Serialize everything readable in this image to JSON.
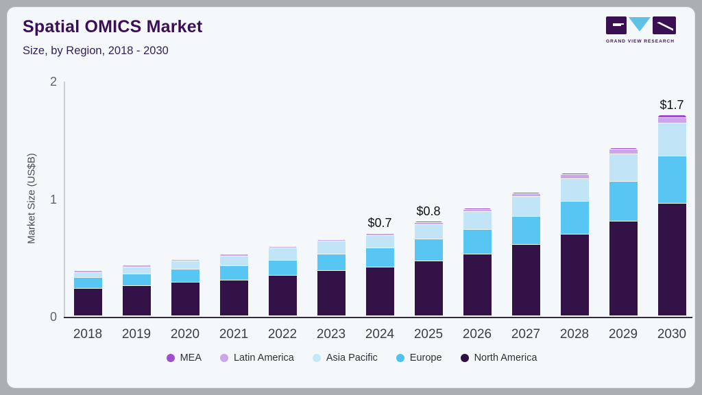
{
  "header": {
    "title": "Spatial OMICS Market",
    "subtitle": "Size, by Region, 2018 - 2030",
    "logo_text": "GRAND VIEW RESEARCH"
  },
  "colors": {
    "page_background": "#abafb4",
    "card_background": "#f5f8fa",
    "title_text": "#3a0f55",
    "axis_line_dark": "#332d3b",
    "axis_line_light": "#c7ced5",
    "logo_purple": "#3a1053",
    "logo_blue": "#5ec1e6"
  },
  "chart_data": {
    "type": "bar",
    "stacked": true,
    "title": "Spatial OMICS Market",
    "subtitle": "Size, by Region, 2018 - 2030",
    "xlabel": "",
    "ylabel": "Market Size (US$B)",
    "ylim": [
      0,
      2
    ],
    "yticks": [
      0,
      1,
      2
    ],
    "grid": false,
    "legend_position": "bottom",
    "categories": [
      "2018",
      "2019",
      "2020",
      "2021",
      "2022",
      "2023",
      "2024",
      "2025",
      "2026",
      "2027",
      "2028",
      "2029",
      "2030"
    ],
    "series": [
      {
        "name": "North America",
        "color": "#331347",
        "values": [
          0.23,
          0.25,
          0.28,
          0.3,
          0.34,
          0.38,
          0.41,
          0.46,
          0.52,
          0.6,
          0.69,
          0.8,
          0.95
        ]
      },
      {
        "name": "Europe",
        "color": "#58c6f2",
        "values": [
          0.09,
          0.1,
          0.11,
          0.12,
          0.13,
          0.14,
          0.16,
          0.19,
          0.21,
          0.24,
          0.28,
          0.34,
          0.4
        ]
      },
      {
        "name": "Asia Pacific",
        "color": "#c1e5f7",
        "values": [
          0.045,
          0.06,
          0.07,
          0.08,
          0.1,
          0.11,
          0.105,
          0.12,
          0.15,
          0.17,
          0.19,
          0.23,
          0.28
        ]
      },
      {
        "name": "Latin America",
        "color": "#cda6e9",
        "values": [
          0.015,
          0.015,
          0.015,
          0.02,
          0.015,
          0.015,
          0.02,
          0.02,
          0.02,
          0.025,
          0.035,
          0.04,
          0.05
        ]
      },
      {
        "name": "MEA",
        "color": "#9d4ccb",
        "values": [
          0.005,
          0.005,
          0.005,
          0.005,
          0.005,
          0.005,
          0.005,
          0.01,
          0.01,
          0.01,
          0.01,
          0.015,
          0.02
        ]
      }
    ],
    "annotations": [
      {
        "category": "2024",
        "label": "$0.7"
      },
      {
        "category": "2025",
        "label": "$0.8"
      },
      {
        "category": "2030",
        "label": "$1.7"
      }
    ]
  },
  "legend": {
    "items": [
      {
        "label": "MEA",
        "color": "#a14fd0"
      },
      {
        "label": "Latin America",
        "color": "#cda6e9"
      },
      {
        "label": "Asia Pacific",
        "color": "#c5e8f9"
      },
      {
        "label": "Europe",
        "color": "#4ec3ef"
      },
      {
        "label": "North America",
        "color": "#2d1040"
      }
    ]
  }
}
